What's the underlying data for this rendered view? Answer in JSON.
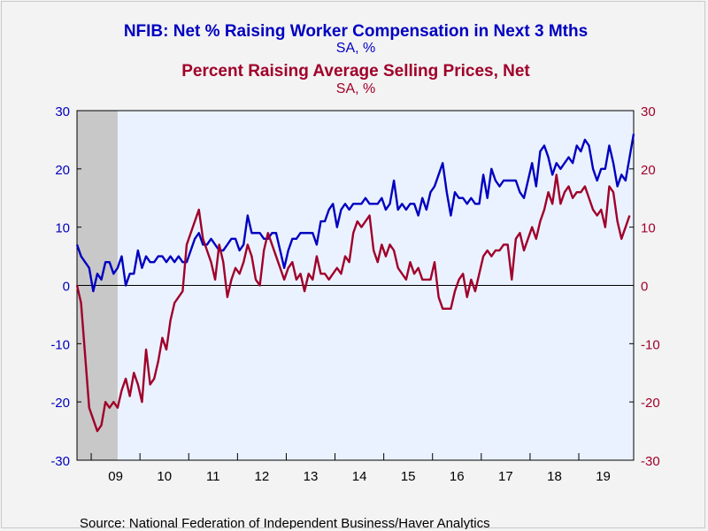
{
  "chart_data": {
    "type": "line",
    "title": "NFIB: Net % Raising Worker Compensation in Next 3 Mths",
    "title_unit": "SA, %",
    "subtitle": "Percent Raising Average Selling Prices, Net",
    "subtitle_unit": "SA, %",
    "source": "Source:  National Federation of Independent Business/Haver Analytics",
    "x_start": "2008-09",
    "x_tick_labels": [
      "09",
      "10",
      "11",
      "12",
      "13",
      "14",
      "15",
      "16",
      "17",
      "18",
      "19"
    ],
    "x_tick_years": [
      2009,
      2010,
      2011,
      2012,
      2013,
      2014,
      2015,
      2016,
      2017,
      2018,
      2019
    ],
    "ylim": [
      -30,
      30
    ],
    "y_ticks": [
      -30,
      -20,
      -10,
      0,
      10,
      20,
      30
    ],
    "y_left_tick_labels": [
      "30",
      "20",
      "10",
      "0",
      "-10",
      "-20",
      "-30"
    ],
    "y_right_tick_labels": [
      "30",
      "20",
      "10",
      "0",
      "-10",
      "-20",
      "-30"
    ],
    "grid": false,
    "zero_line": true,
    "recession": {
      "start": "2008-09",
      "end": "2009-06",
      "color": "#c8c8c8"
    },
    "plot_background": "#eaf2ff",
    "series": [
      {
        "color": "#0000c0",
        "values": [
          7,
          5,
          4,
          3,
          -1,
          2,
          1,
          4,
          4,
          2,
          3,
          5,
          0,
          2,
          2,
          6,
          3,
          5,
          4,
          4,
          5,
          5,
          4,
          5,
          4,
          5,
          4,
          4,
          6,
          8,
          9,
          7,
          7,
          8,
          7,
          6,
          6,
          7,
          8,
          8,
          6,
          7,
          12,
          9,
          9,
          9,
          8,
          8,
          9,
          9,
          6,
          3,
          6,
          8,
          8,
          9,
          9,
          9,
          9,
          7,
          11,
          11,
          13,
          14,
          10,
          13,
          14,
          13,
          14,
          14,
          14,
          15,
          14,
          14,
          14,
          15,
          13,
          14,
          18,
          13,
          14,
          13,
          14,
          14,
          12,
          15,
          13,
          16,
          17,
          19,
          21,
          16,
          12,
          16,
          15,
          15,
          14,
          15,
          14,
          14,
          19,
          15,
          20,
          18,
          17,
          18,
          18,
          18,
          18,
          16,
          15,
          18,
          21,
          17,
          23,
          24,
          22,
          19,
          21,
          20,
          21,
          22,
          21,
          24,
          23,
          25,
          24,
          20,
          18,
          20,
          20,
          24,
          21,
          17,
          19,
          18,
          22,
          26
        ]
      },
      {
        "color": "#a0002a",
        "values": [
          0,
          -3,
          -12,
          -21,
          -23,
          -25,
          -24,
          -20,
          -21,
          -20,
          -21,
          -18,
          -16,
          -19,
          -15,
          -17,
          -20,
          -11,
          -17,
          -16,
          -13,
          -9,
          -11,
          -6,
          -3,
          -2,
          -1,
          7,
          9,
          11,
          13,
          8,
          6,
          4,
          1,
          7,
          4,
          -2,
          1,
          3,
          2,
          4,
          7,
          5,
          1,
          0,
          6,
          9,
          7,
          5,
          3,
          1,
          3,
          4,
          1,
          2,
          -1,
          2,
          1,
          5,
          2,
          2,
          1,
          2,
          3,
          2,
          5,
          4,
          9,
          11,
          10,
          11,
          12,
          6,
          4,
          7,
          5,
          7,
          6,
          3,
          2,
          1,
          4,
          2,
          3,
          1,
          1,
          1,
          4,
          -2,
          -4,
          -4,
          -4,
          -1,
          1,
          2,
          -2,
          1,
          -1,
          2,
          5,
          6,
          5,
          6,
          6,
          7,
          7,
          1,
          8,
          9,
          6,
          8,
          10,
          8,
          11,
          13,
          16,
          14,
          19,
          14,
          16,
          17,
          15,
          16,
          16,
          17,
          15,
          13,
          12,
          13,
          10,
          17,
          16,
          11,
          8,
          10,
          12
        ]
      }
    ]
  }
}
